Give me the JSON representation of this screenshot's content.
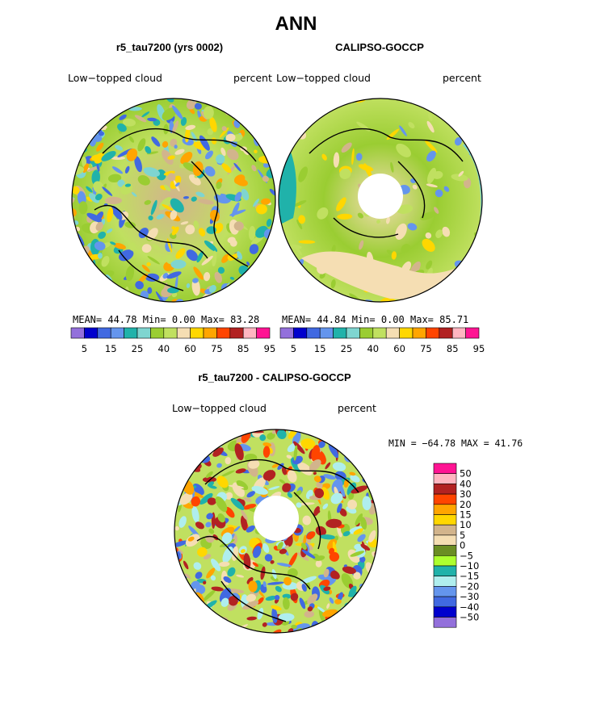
{
  "figure": {
    "title": "ANN",
    "panel_left": {
      "title": "r5_tau7200 (yrs 0002)",
      "variable": "Low−topped cloud",
      "units": "percent",
      "mean_label": "MEAN=",
      "mean": "44.78",
      "min_label": "Min=",
      "min": "0.00",
      "max_label": "Max=",
      "max": "83.28"
    },
    "panel_right": {
      "title": "CALIPSO-GOCCP",
      "variable": "Low−topped cloud",
      "units": "percent",
      "mean_label": "MEAN=",
      "mean": "44.84",
      "min_label": "Min=",
      "min": "0.00",
      "max_label": "Max=",
      "max": "85.71"
    },
    "panel_diff": {
      "title": "r5_tau7200 - CALIPSO-GOCCP",
      "variable": "Low−topped cloud",
      "units": "percent",
      "minmax_label": "MIN = −64.78 MAX =  41.76"
    },
    "colorbar_labels": [
      "5",
      "15",
      "25",
      "40",
      "60",
      "75",
      "85",
      "95"
    ],
    "colorbar_colors": [
      "#9370db",
      "#0000cd",
      "#4169e1",
      "#6495ed",
      "#20b2aa",
      "#7fd5d0",
      "#9acd32",
      "#c0e060",
      "#f5deb3",
      "#ffd700",
      "#ffa500",
      "#ff4500",
      "#b22222",
      "#ffb6c1",
      "#ff1493"
    ],
    "diff_labels": [
      "50",
      "40",
      "30",
      "20",
      "15",
      "10",
      "5",
      "0",
      "−5",
      "−10",
      "−15",
      "−20",
      "−30",
      "−40",
      "−50"
    ],
    "diff_colors": [
      "#ff1493",
      "#ffb6c1",
      "#b22222",
      "#ff4500",
      "#ffa500",
      "#ffd700",
      "#d2b48c",
      "#f5deb3",
      "#6b8e23",
      "#adff2f",
      "#20b2aa",
      "#afeeee",
      "#6495ed",
      "#4169e1",
      "#0000cd",
      "#9370db"
    ]
  }
}
